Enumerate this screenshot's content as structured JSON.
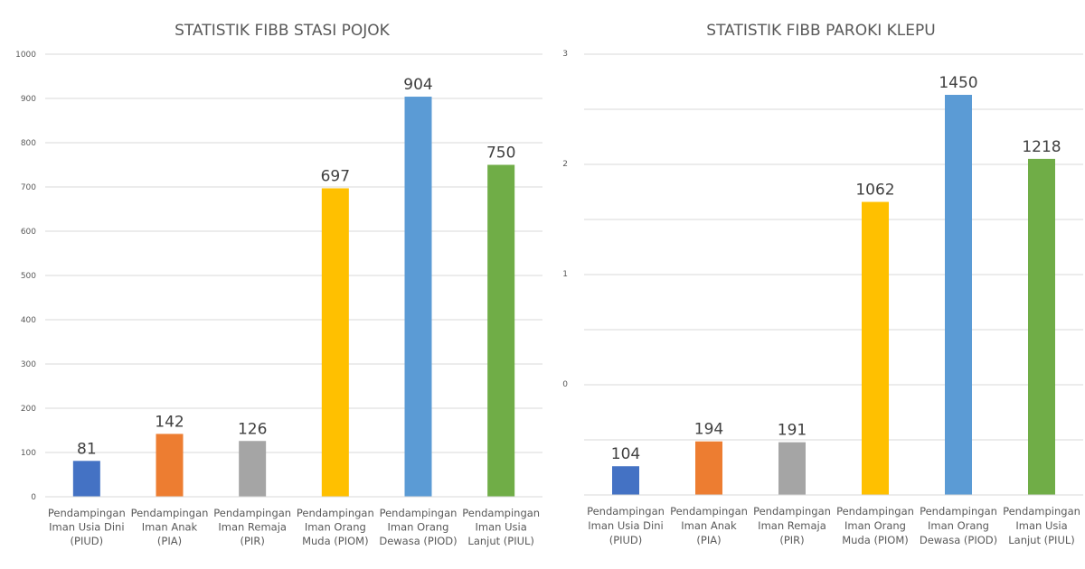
{
  "chart_data": [
    {
      "type": "bar",
      "title": "STATISTIK FIBB STASI POJOK",
      "categories": [
        [
          "Pendampingan",
          "Iman Usia Dini",
          "(PIUD)"
        ],
        [
          "Pendampingan",
          "Iman Anak",
          "(PIA)"
        ],
        [
          "Pendampingan",
          "Iman Remaja",
          "(PIR)"
        ],
        [
          "Pendampingan",
          "Iman Orang",
          "Muda (PIOM)"
        ],
        [
          "Pendampingan",
          "Iman Orang",
          "Dewasa (PIOD)"
        ],
        [
          "Pendampingan",
          "Iman Usia",
          "Lanjut (PIUL)"
        ]
      ],
      "values": [
        81,
        142,
        126,
        697,
        904,
        750
      ],
      "data_labels": [
        "81",
        "142",
        "126",
        "697",
        "904",
        "750"
      ],
      "colors": [
        "#4472c4",
        "#ed7d31",
        "#a5a5a5",
        "#ffc000",
        "#5b9bd5",
        "#70ad47"
      ],
      "ylim": [
        0,
        1000
      ],
      "y_ticks": [
        "0",
        "100",
        "200",
        "300",
        "400",
        "500",
        "600",
        "700",
        "800",
        "900",
        "1000"
      ],
      "grid": true,
      "legend": "none"
    },
    {
      "type": "bar",
      "title": "STATISTIK FIBB PAROKI KLEPU",
      "categories": [
        [
          "Pendampingan",
          "Iman Usia Dini",
          "(PIUD)"
        ],
        [
          "Pendampingan",
          "Iman Anak",
          "(PIA)"
        ],
        [
          "Pendampingan",
          "Iman Remaja",
          "(PIR)"
        ],
        [
          "Pendampingan",
          "Iman Orang",
          "Muda (PIOM)"
        ],
        [
          "Pendampingan",
          "Iman Orang",
          "Dewasa (PIOD)"
        ],
        [
          "Pendampingan",
          "Iman Usia",
          "Lanjut (PIUL)"
        ]
      ],
      "values": [
        104,
        194,
        191,
        1062,
        1450,
        1218
      ],
      "data_labels": [
        "104",
        "194",
        "191",
        "1062",
        "1450",
        "1218"
      ],
      "colors": [
        "#4472c4",
        "#ed7d31",
        "#a5a5a5",
        "#ffc000",
        "#5b9bd5",
        "#70ad47"
      ],
      "ylim": [
        -1,
        3
      ],
      "y_ticks": [
        "0",
        "1",
        "2",
        "3"
      ],
      "y_tick_values": [
        0,
        1,
        2,
        3
      ],
      "grid": true,
      "legend": "none"
    }
  ]
}
